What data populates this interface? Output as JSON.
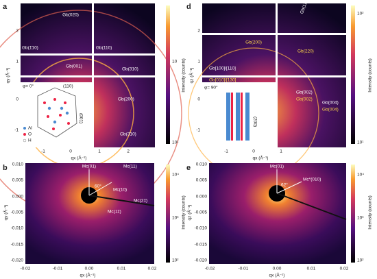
{
  "panels": [
    {
      "label": "a",
      "ylabel": "qy (Å⁻¹)",
      "xlabel": "qx (Å⁻¹)",
      "yticks": [
        "2",
        "1",
        "0",
        "-1"
      ],
      "xticks": [
        "-1",
        "0",
        "1",
        "2"
      ],
      "colorbar": {
        "label": "Intensity (counts)",
        "ticks": [
          "10",
          "10¹"
        ]
      },
      "annotations": [
        "Gb(020)",
        "Gb(1̄10)",
        "Gb(110)",
        "Gb(310)",
        "Gb(001)",
        "Gb(200)",
        "Gb(3̄10)"
      ],
      "inset": {
        "angle": "φ= 0°",
        "planes": [
          "(110)",
          "(001)"
        ],
        "legend": [
          "Al",
          "O",
          "H"
        ]
      }
    },
    {
      "label": "b",
      "ylabel": "qy (Å⁻¹)",
      "xlabel": "qx (Å⁻¹)",
      "yticks": [
        "0.010",
        "0.005",
        "0.000",
        "-0.005",
        "-0.010",
        "-0.015",
        "-0.020"
      ],
      "xticks": [
        "-0.02",
        "-0.01",
        "0.00",
        "0.01",
        "0.02"
      ],
      "colorbar": {
        "label": "Intensity (counts)",
        "ticks": [
          "10⁴",
          "10³",
          "10²"
        ]
      },
      "annotations": [
        "Mc(01)",
        "Mc(11)",
        "Mc(10)",
        "Mc(21̄)",
        "Mc(11̄)",
        "60°"
      ]
    },
    {
      "label": "d",
      "ylabel": "qz (Å⁻¹)",
      "xlabel": "qx (Å⁻¹)",
      "yticks": [
        "2",
        "1",
        "0",
        "-1"
      ],
      "xticks": [
        "-1",
        "0",
        "1"
      ],
      "colorbar": {
        "label": "Intensity (counts)",
        "ticks": [
          "10²",
          "10¹"
        ]
      },
      "annotations": [
        "Gb(113)",
        "Gb(200)",
        "Gb(220)",
        "Gb[100]/[110]",
        "Gb[010]/[130]",
        "Gb(002)",
        "Gb(002)",
        "Gb(004)",
        "Gb(004)"
      ],
      "inset": {
        "angle": "φ= 90°",
        "planes": [
          "(200)"
        ]
      }
    },
    {
      "label": "e",
      "ylabel": "qz (Å⁻¹)",
      "xlabel": "qx (Å⁻¹)",
      "yticks": [
        "0.010",
        "0.005",
        "0.000",
        "-0.005",
        "-0.010",
        "-0.015",
        "-0.020"
      ],
      "xticks": [
        "-0.02",
        "-0.01",
        "0.00",
        "0.01",
        "0.02"
      ],
      "colorbar": {
        "label": "Intensity (counts)",
        "ticks": [
          "10⁴",
          "10³",
          "10²"
        ]
      },
      "annotations": [
        "Mc(01)",
        "Mc*(010)",
        "62°"
      ]
    }
  ]
}
